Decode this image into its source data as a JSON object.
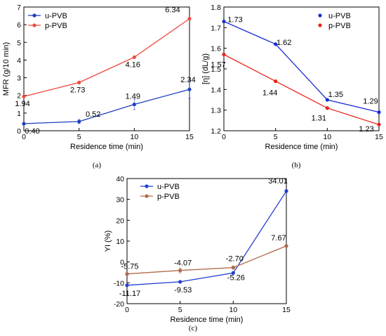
{
  "chart_data": [
    {
      "type": "line",
      "panel": "(a)",
      "xlabel": "Residence time (min)",
      "ylabel": "MFR (g/10 min)",
      "xlim": [
        0,
        15
      ],
      "ylim": [
        0,
        7
      ],
      "xticks": [
        0,
        5,
        10,
        15
      ],
      "yticks": [
        0,
        1,
        2,
        3,
        4,
        5,
        6,
        7
      ],
      "legend_position": "top-left",
      "x": [
        0,
        5,
        10,
        15
      ],
      "series": [
        {
          "name": "u-PVB",
          "color": "#1f3fbf",
          "values": [
            0.4,
            0.52,
            1.49,
            2.34
          ],
          "labels": [
            "0.40",
            "0.52",
            "1.49",
            "2.34"
          ],
          "errors": [
            0.05,
            0.12,
            0.3,
            0.5
          ]
        },
        {
          "name": "p-PVB",
          "color": "#f04a3e",
          "values": [
            1.94,
            2.73,
            4.16,
            6.34
          ],
          "labels": [
            "1.94",
            "2.73",
            "4.16",
            "6.34"
          ],
          "errors": [
            0,
            0,
            0,
            0
          ]
        }
      ]
    },
    {
      "type": "line",
      "panel": "(b)",
      "xlabel": "Residence time (min)",
      "ylabel": "[η] (dL/g)",
      "xlim": [
        0,
        15
      ],
      "ylim": [
        1.2,
        1.8
      ],
      "xticks": [
        0,
        5,
        10,
        15
      ],
      "yticks": [
        1.2,
        1.3,
        1.4,
        1.5,
        1.6,
        1.7,
        1.8
      ],
      "legend_position": "top-right",
      "x": [
        0,
        5,
        10,
        15
      ],
      "series": [
        {
          "name": "u-PVB",
          "color": "#1a2fd6",
          "values": [
            1.73,
            1.62,
            1.35,
            1.29
          ],
          "labels": [
            "1.73",
            "1.62",
            "1.35",
            "1.29"
          ],
          "errors": [
            0,
            0,
            0,
            0
          ]
        },
        {
          "name": "p-PVB",
          "color": "#e8241c",
          "values": [
            1.57,
            1.44,
            1.31,
            1.23
          ],
          "labels": [
            "1.57",
            "1.44",
            "1.31",
            "1.23"
          ],
          "errors": [
            0,
            0,
            0,
            0
          ]
        }
      ]
    },
    {
      "type": "line",
      "panel": "(c)",
      "xlabel": "Residence time (min)",
      "ylabel": "YI (%)",
      "xlim": [
        0,
        15
      ],
      "ylim": [
        -20,
        40
      ],
      "xticks": [
        0,
        5,
        10,
        15
      ],
      "yticks": [
        -20,
        -10,
        0,
        10,
        20,
        30,
        40
      ],
      "legend_position": "top-left",
      "x": [
        0,
        5,
        10,
        15
      ],
      "series": [
        {
          "name": "u-PVB",
          "color": "#1f3fd6",
          "values": [
            -11.17,
            -9.53,
            -5.26,
            34.01
          ],
          "labels": [
            "-11.17",
            "-9.53",
            "-5.26",
            "34.01"
          ],
          "errors": [
            0,
            0,
            0,
            0
          ]
        },
        {
          "name": "p-PVB",
          "color": "#b06a4a",
          "values": [
            -5.75,
            -4.07,
            -2.7,
            7.67
          ],
          "labels": [
            "-5.75",
            "-4.07",
            "-2.70",
            "7.67"
          ],
          "errors": [
            0.6,
            1.2,
            0.8,
            0.4
          ]
        }
      ]
    }
  ]
}
